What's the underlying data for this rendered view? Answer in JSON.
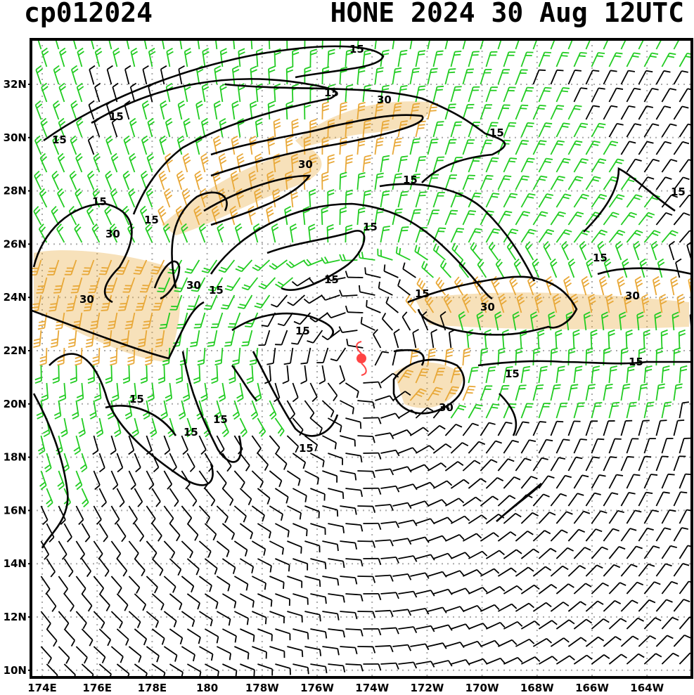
{
  "header": {
    "storm_id": "cp012024",
    "storm_time": "HONE 2024 30 Aug 12UTC"
  },
  "map": {
    "lat_labels": [
      "32N",
      "30N",
      "28N",
      "26N",
      "24N",
      "22N",
      "20N",
      "18N",
      "16N",
      "14N",
      "12N",
      "10N"
    ],
    "lon_labels": [
      "174E",
      "176E",
      "178E",
      "180",
      "178W",
      "176W",
      "174W",
      "172W",
      "170W",
      "168W",
      "166W",
      "164W"
    ],
    "wind_colors": {
      "light": "#000000",
      "moderate": "#22cc22",
      "strong": "#e8a838"
    },
    "storm_center_color": "#ff4444",
    "contour_labels": {
      "c1": "15",
      "c2": "15",
      "c3": "15",
      "c4": "15",
      "c5": "15",
      "c6": "15",
      "c7": "15",
      "c8": "15",
      "c9": "15",
      "c10": "15",
      "c11": "15",
      "c12": "15",
      "c13": "15",
      "c14": "15",
      "c15": "15",
      "c16": "15",
      "c17": "15",
      "d1": "30",
      "d2": "30",
      "d3": "30",
      "d4": "30",
      "d5": "30",
      "d6": "30",
      "d7": "30"
    }
  }
}
